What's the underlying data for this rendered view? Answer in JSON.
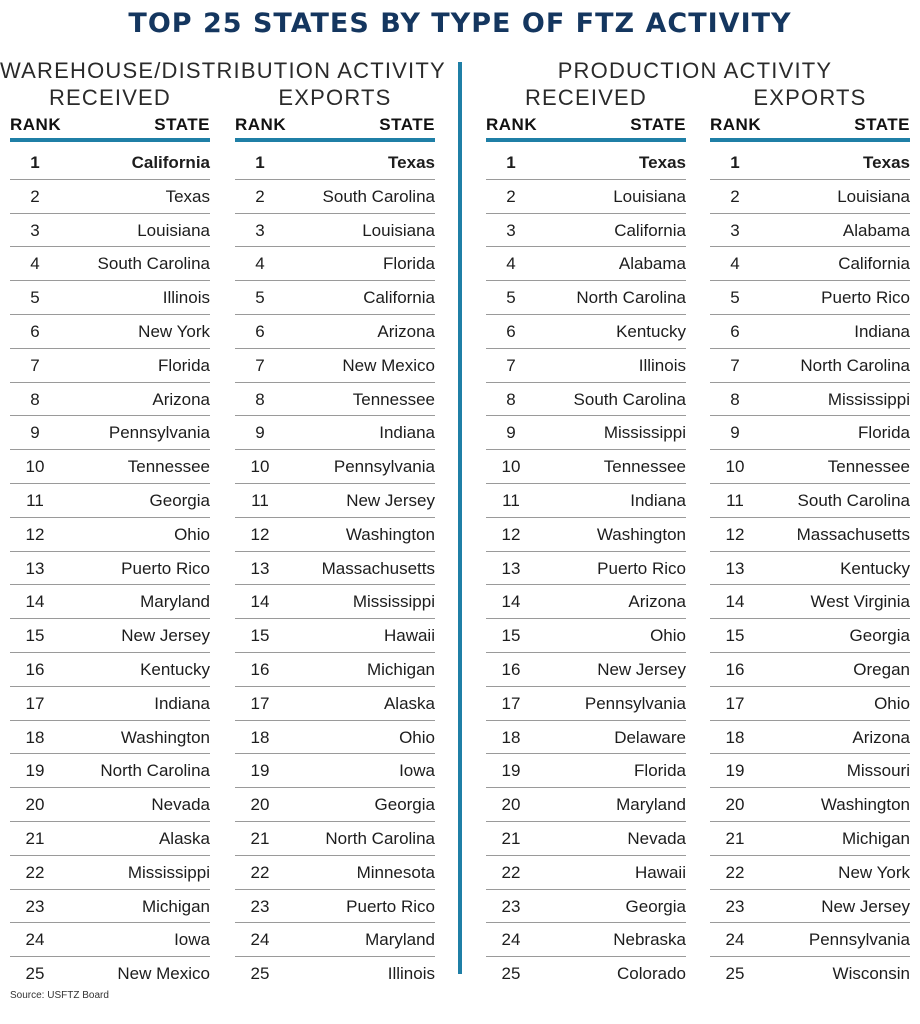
{
  "title": "TOP 25 STATES BY TYPE OF FTZ ACTIVITY",
  "sections": {
    "left": "WAREHOUSE/DISTRIBUTION ACTIVITY",
    "right": "PRODUCTION ACTIVITY"
  },
  "headers": {
    "rank": "RANK",
    "state": "STATE"
  },
  "columns": [
    {
      "label": "RECEIVED",
      "ranks": [
        "1",
        "2",
        "3",
        "4",
        "5",
        "6",
        "7",
        "8",
        "9",
        "10",
        "11",
        "12",
        "13",
        "14",
        "15",
        "16",
        "17",
        "18",
        "19",
        "20",
        "21",
        "22",
        "23",
        "24",
        "25"
      ],
      "states": [
        "California",
        "Texas",
        "Louisiana",
        "South Carolina",
        "Illinois",
        "New York",
        "Florida",
        "Arizona",
        "Pennsylvania",
        "Tennessee",
        "Georgia",
        "Ohio",
        "Puerto Rico",
        "Maryland",
        "New Jersey",
        "Kentucky",
        "Indiana",
        "Washington",
        "North Carolina",
        "Nevada",
        "Alaska",
        "Mississippi",
        "Michigan",
        "Iowa",
        "New Mexico"
      ]
    },
    {
      "label": "EXPORTS",
      "ranks": [
        "1",
        "2",
        "3",
        "4",
        "5",
        "6",
        "7",
        "8",
        "9",
        "10",
        "11",
        "12",
        "13",
        "14",
        "15",
        "16",
        "17",
        "18",
        "19",
        "20",
        "21",
        "22",
        "23",
        "24",
        "25"
      ],
      "states": [
        "Texas",
        "South Carolina",
        "Louisiana",
        "Florida",
        "California",
        "Arizona",
        "New Mexico",
        "Tennessee",
        "Indiana",
        "Pennsylvania",
        "New Jersey",
        "Washington",
        "Massachusetts",
        "Mississippi",
        "Hawaii",
        "Michigan",
        "Alaska",
        "Ohio",
        "Iowa",
        "Georgia",
        "North Carolina",
        "Minnesota",
        "Puerto Rico",
        "Maryland",
        "Illinois"
      ]
    },
    {
      "label": "RECEIVED",
      "ranks": [
        "1",
        "2",
        "3",
        "4",
        "5",
        "6",
        "7",
        "8",
        "9",
        "10",
        "11",
        "12",
        "13",
        "14",
        "15",
        "16",
        "17",
        "18",
        "19",
        "20",
        "21",
        "22",
        "23",
        "24",
        "25"
      ],
      "states": [
        "Texas",
        "Louisiana",
        "California",
        "Alabama",
        "North Carolina",
        "Kentucky",
        "Illinois",
        "South Carolina",
        "Mississippi",
        "Tennessee",
        "Indiana",
        "Washington",
        "Puerto Rico",
        "Arizona",
        "Ohio",
        "New Jersey",
        "Pennsylvania",
        "Delaware",
        "Florida",
        "Maryland",
        "Nevada",
        "Hawaii",
        "Georgia",
        "Nebraska",
        "Colorado"
      ]
    },
    {
      "label": "EXPORTS",
      "ranks": [
        "1",
        "2",
        "3",
        "4",
        "5",
        "6",
        "7",
        "8",
        "9",
        "10",
        "11",
        "12",
        "13",
        "14",
        "15",
        "16",
        "17",
        "18",
        "19",
        "20",
        "21",
        "22",
        "23",
        "24",
        "25"
      ],
      "states": [
        "Texas",
        "Louisiana",
        "Alabama",
        "California",
        "Puerto Rico",
        "Indiana",
        "North Carolina",
        "Mississippi",
        "Florida",
        "Tennessee",
        "South Carolina",
        "Massachusetts",
        "Kentucky",
        "West Virginia",
        "Georgia",
        "Oregan",
        "Ohio",
        "Arizona",
        "Missouri",
        "Washington",
        "Michigan",
        "New York",
        "New Jersey",
        "Pennsylvania",
        "Wisconsin"
      ]
    }
  ],
  "source": "Source: USFTZ Board",
  "colors": {
    "title": "#14365f",
    "accent": "#1f7fa6"
  }
}
